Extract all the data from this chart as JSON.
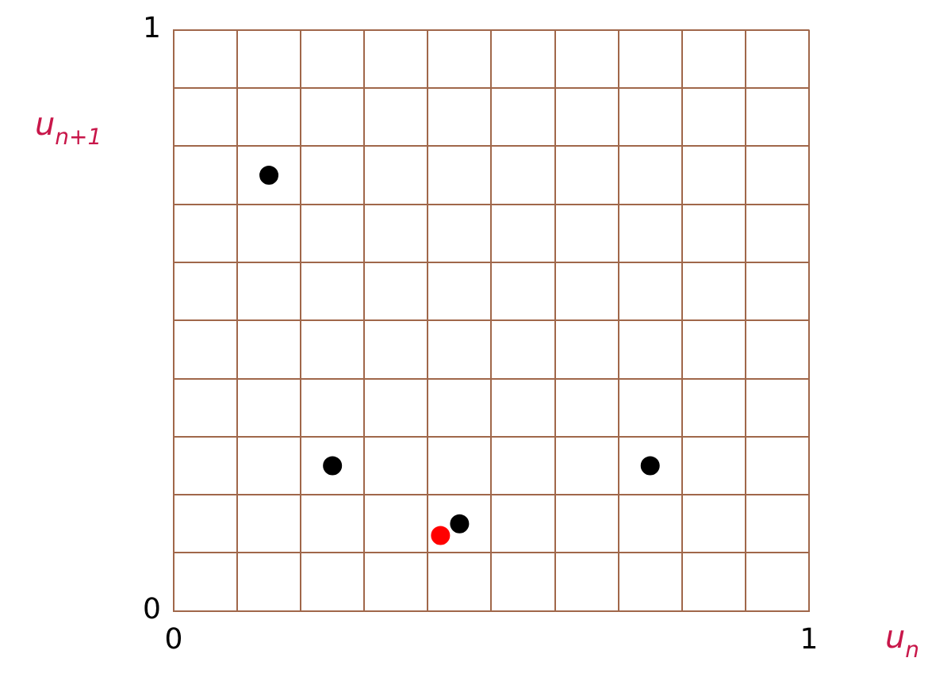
{
  "chart_data": {
    "type": "scatter",
    "xlabel": "u$_{n}$",
    "ylabel": "u$_{n+1}$",
    "xlim": [
      0,
      1
    ],
    "ylim": [
      0,
      1
    ],
    "xticks": [
      0,
      {
        "value": 0.1,
        "label": null
      },
      {
        "value": 0.2,
        "label": null
      },
      {
        "value": 0.3,
        "label": null
      },
      {
        "value": 0.4,
        "label": null
      },
      {
        "value": 0.5,
        "label": null
      },
      {
        "value": 0.6,
        "label": null
      },
      {
        "value": 0.7,
        "label": null
      },
      {
        "value": 0.8,
        "label": null
      },
      {
        "value": 0.9,
        "label": null
      },
      1
    ],
    "yticks": [
      0,
      {
        "value": 0.1,
        "label": null
      },
      {
        "value": 0.2,
        "label": null
      },
      {
        "value": 0.3,
        "label": null
      },
      {
        "value": 0.4,
        "label": null
      },
      {
        "value": 0.5,
        "label": null
      },
      {
        "value": 0.6,
        "label": null
      },
      {
        "value": 0.7,
        "label": null
      },
      {
        "value": 0.8,
        "label": null
      },
      {
        "value": 0.9,
        "label": null
      },
      1
    ],
    "series": [
      {
        "color": "#000000",
        "x": [
          0.15,
          0.25,
          0.75,
          0.45
        ],
        "values": [
          0.75,
          0.25,
          0.25,
          0.15
        ]
      },
      {
        "color": "#ff0000",
        "x": [
          0.42
        ],
        "values": [
          0.13
        ]
      }
    ],
    "grid": true,
    "marker": "circle",
    "legend": false
  }
}
